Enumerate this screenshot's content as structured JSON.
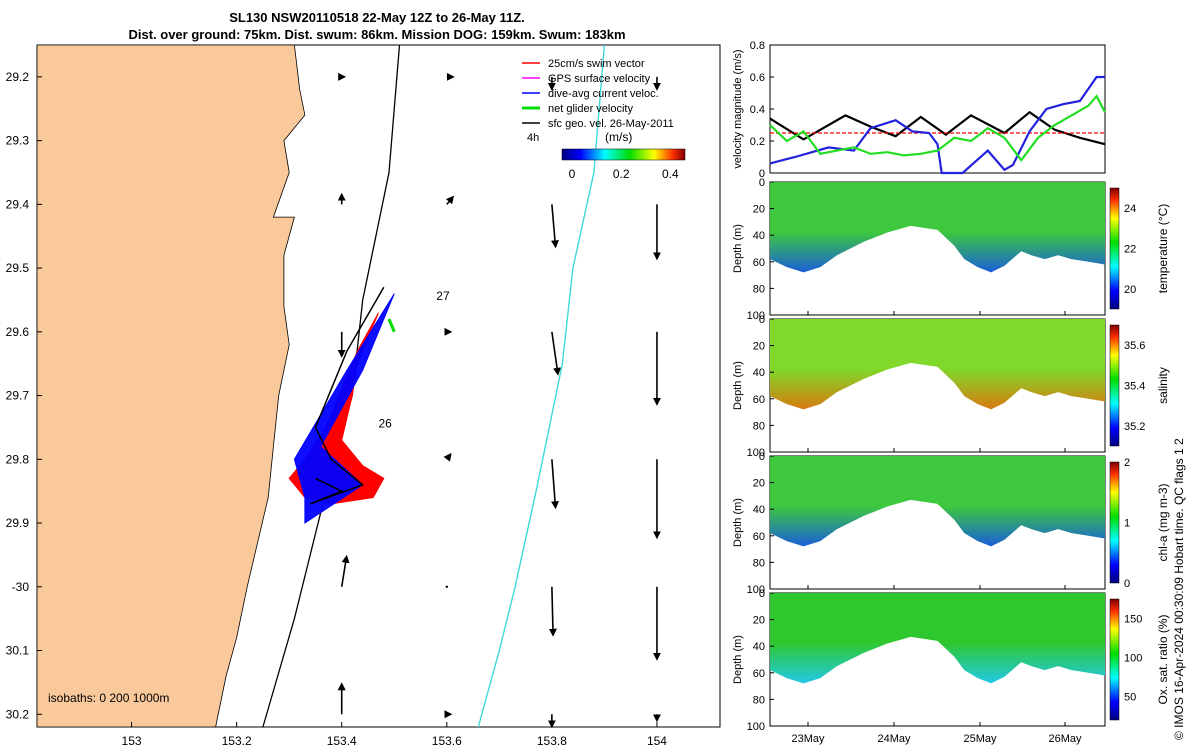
{
  "header": {
    "title_line1": "SL130 NSW20110518 22-May 12Z to 26-May 11Z.",
    "title_line2": "Dist. over ground: 75km. Dist. swum: 86km. Mission DOG: 159km. Swum: 183km"
  },
  "side_credit": "© IMOS 16-Apr-2024 00:30:09 Hobart time. QC flags 1  2",
  "colors": {
    "land": "#f9c89b",
    "glider_swim": "#ff0000",
    "glider_track_blue": "#0000ff",
    "net_velocity": "#00dd00",
    "isobath_200": "#000000",
    "isobath_1000": "#40d8d8",
    "depth_fill": "#1bb81b"
  },
  "chart_data": [
    {
      "type": "map",
      "name": "map",
      "xlim": [
        152.82,
        154.12
      ],
      "ylim": [
        -30.22,
        -29.15
      ],
      "x_ticks": [
        153,
        153.2,
        153.4,
        153.6,
        153.8,
        154
      ],
      "x_tick_labels": [
        "153",
        "153.2",
        "153.4",
        "153.6",
        "153.8",
        "154"
      ],
      "y_ticks": [
        -29.2,
        -29.3,
        -29.4,
        -29.5,
        -29.6,
        -29.7,
        -29.8,
        -29.9,
        -30,
        -30.1,
        -30.2
      ],
      "y_tick_labels": [
        "29.2",
        "29.3",
        "29.4",
        "29.5",
        "29.6",
        "29.7",
        "29.8",
        "29.9",
        "-30",
        "30.1",
        "30.2"
      ],
      "legend": [
        {
          "label": "25cm/s swim vector",
          "color": "#ff0000"
        },
        {
          "label": "GPS surface velocity",
          "color": "#ff00ff"
        },
        {
          "label": "dive-avg current veloc.",
          "color": "#0000ff"
        },
        {
          "label": "net glider velocity",
          "color": "#00dd00"
        },
        {
          "label": "sfc geo. vel. 26-May-2011",
          "color": "#000000"
        }
      ],
      "legend_time_label": "4h",
      "colorbar": {
        "label": "(m/s)",
        "ticks": [
          "0",
          "0.2",
          "0.4"
        ],
        "range": [
          0,
          0.5
        ]
      },
      "isobath_caption": "isobaths: 0   200  1000m",
      "day_labels": [
        {
          "text": "27",
          "lon": 153.58,
          "lat": -29.55
        },
        {
          "text": "26",
          "lon": 153.47,
          "lat": -29.75
        }
      ],
      "isobath_200_path": [
        [
          153.51,
          -29.15
        ],
        [
          153.49,
          -29.35
        ],
        [
          153.44,
          -29.55
        ],
        [
          153.42,
          -29.7
        ],
        [
          153.37,
          -29.85
        ],
        [
          153.31,
          -30.05
        ],
        [
          153.25,
          -30.22
        ]
      ],
      "isobath_1000_path": [
        [
          153.9,
          -29.15
        ],
        [
          153.88,
          -29.35
        ],
        [
          153.84,
          -29.5
        ],
        [
          153.82,
          -29.65
        ],
        [
          153.77,
          -29.85
        ],
        [
          153.73,
          -30.0
        ],
        [
          153.7,
          -30.1
        ],
        [
          153.66,
          -30.22
        ]
      ],
      "glider_track": [
        [
          153.48,
          -29.53
        ],
        [
          153.41,
          -29.63
        ],
        [
          153.35,
          -29.75
        ],
        [
          153.38,
          -29.8
        ],
        [
          153.44,
          -29.84
        ],
        [
          153.34,
          -29.87
        ],
        [
          153.4,
          -29.85
        ],
        [
          153.35,
          -29.83
        ]
      ],
      "swim_blob": [
        [
          153.47,
          -29.57
        ],
        [
          153.43,
          -29.65
        ],
        [
          153.42,
          -29.7
        ],
        [
          153.4,
          -29.77
        ],
        [
          153.44,
          -29.81
        ],
        [
          153.48,
          -29.83
        ],
        [
          153.46,
          -29.86
        ],
        [
          153.38,
          -29.87
        ],
        [
          153.33,
          -29.86
        ],
        [
          153.3,
          -29.83
        ],
        [
          153.33,
          -29.8
        ],
        [
          153.37,
          -29.75
        ],
        [
          153.43,
          -29.63
        ]
      ],
      "blue_blob": [
        [
          153.5,
          -29.54
        ],
        [
          153.44,
          -29.66
        ],
        [
          153.36,
          -29.78
        ],
        [
          153.44,
          -29.84
        ],
        [
          153.33,
          -29.9
        ],
        [
          153.33,
          -29.86
        ],
        [
          153.31,
          -29.8
        ],
        [
          153.41,
          -29.66
        ],
        [
          153.47,
          -29.58
        ]
      ],
      "net_velocity_path": [
        [
          153.5,
          -29.6
        ],
        [
          153.49,
          -29.58
        ]
      ],
      "vector_grid": {
        "lons": [
          153.4,
          153.6,
          153.8,
          154.0
        ],
        "lats": [
          -29.2,
          -29.4,
          -29.6,
          -29.8,
          -30.0,
          -30.2
        ],
        "east": [
          [
            0.02,
            0.05,
            0.0,
            0.0
          ],
          [
            0.0,
            0.05,
            0.03,
            0.0
          ],
          [
            0.0,
            0.03,
            0.05,
            0.0
          ],
          [
            0.0,
            0.03,
            0.03,
            0.0
          ],
          [
            0.04,
            0.0,
            0.01,
            0.0
          ],
          [
            0.0,
            0.03,
            0.0,
            0.0
          ]
        ],
        "north": [
          [
            0.0,
            0.0,
            -0.1,
            -0.1
          ],
          [
            0.08,
            0.06,
            -0.35,
            -0.45
          ],
          [
            -0.2,
            0.0,
            -0.35,
            -0.6
          ],
          [
            0.0,
            0.04,
            -0.4,
            -0.65
          ],
          [
            0.25,
            0.0,
            -0.4,
            -0.6
          ],
          [
            0.25,
            0.0,
            -0.1,
            -0.05
          ]
        ]
      }
    },
    {
      "type": "line",
      "name": "velocity",
      "ylabel": "velocity magnitude (m/s)",
      "xlim": [
        0,
        4
      ],
      "ylim": [
        0,
        0.8
      ],
      "y_ticks": [
        0,
        0.2,
        0.4,
        0.6,
        0.8
      ],
      "y_tick_labels": [
        "0",
        "0.2",
        "0.4",
        "0.6",
        "0.8"
      ],
      "series": [
        {
          "color": "#000000",
          "x": [
            0,
            0.4,
            0.9,
            1.2,
            1.5,
            1.8,
            2.1,
            2.4,
            2.8,
            3.1,
            3.4,
            3.7,
            4.0
          ],
          "y": [
            0.34,
            0.21,
            0.36,
            0.29,
            0.23,
            0.35,
            0.24,
            0.36,
            0.25,
            0.38,
            0.27,
            0.22,
            0.18
          ]
        },
        {
          "color": "#ff0000",
          "x": [
            0,
            4.0
          ],
          "y": [
            0.25,
            0.25
          ]
        },
        {
          "color": "#2222dd",
          "x": [
            0,
            0.3,
            0.7,
            1.0,
            1.2,
            1.5,
            1.7,
            1.9,
            2.0,
            2.05,
            2.3,
            2.6,
            2.8,
            2.9,
            3.1,
            3.3,
            3.5,
            3.7,
            3.9,
            4.0
          ],
          "y": [
            0.06,
            0.1,
            0.16,
            0.14,
            0.28,
            0.33,
            0.26,
            0.25,
            0.18,
            0.0,
            0.0,
            0.14,
            0.02,
            0.05,
            0.26,
            0.4,
            0.43,
            0.45,
            0.6,
            0.6
          ]
        },
        {
          "color": "#22dd22",
          "x": [
            0,
            0.2,
            0.4,
            0.6,
            0.8,
            1.0,
            1.2,
            1.4,
            1.6,
            1.8,
            2.0,
            2.2,
            2.4,
            2.6,
            2.8,
            3.0,
            3.2,
            3.4,
            3.6,
            3.8,
            3.9,
            4.0
          ],
          "y": [
            0.3,
            0.2,
            0.26,
            0.12,
            0.14,
            0.16,
            0.12,
            0.13,
            0.11,
            0.12,
            0.14,
            0.22,
            0.2,
            0.28,
            0.22,
            0.08,
            0.22,
            0.3,
            0.36,
            0.42,
            0.48,
            0.38
          ]
        }
      ]
    },
    {
      "type": "heatmap",
      "name": "temperature",
      "ylabel": "Depth (m)",
      "colorbar_label": "temperature (°C)",
      "colorbar_ticks": [
        "20",
        "22",
        "24"
      ],
      "colorbar_range": [
        19,
        25
      ],
      "ylim": [
        0,
        100
      ],
      "y_ticks": [
        0,
        20,
        40,
        60,
        80,
        100
      ],
      "y_tick_labels": [
        "0",
        "20",
        "40",
        "60",
        "80",
        "100"
      ],
      "surface_color": "#3ec83e",
      "bottom_color": "#1a5ed8"
    },
    {
      "type": "heatmap",
      "name": "salinity",
      "ylabel": "Depth (m)",
      "colorbar_label": "salinity",
      "colorbar_ticks": [
        "35.2",
        "35.4",
        "35.6"
      ],
      "colorbar_range": [
        35.1,
        35.7
      ],
      "ylim": [
        0,
        100
      ],
      "y_ticks": [
        0,
        20,
        40,
        60,
        80,
        100
      ],
      "y_tick_labels": [
        "0",
        "20",
        "40",
        "60",
        "80",
        "100"
      ],
      "surface_color": "#7fd82a",
      "bottom_color": "#d87a10"
    },
    {
      "type": "heatmap",
      "name": "chla",
      "ylabel": "Depth (m)",
      "colorbar_label": "chl-a (mg m-3)",
      "colorbar_ticks": [
        "0",
        "1",
        "2"
      ],
      "colorbar_range": [
        0,
        2
      ],
      "ylim": [
        0,
        100
      ],
      "y_ticks": [
        0,
        20,
        40,
        60,
        80,
        100
      ],
      "y_tick_labels": [
        "0",
        "20",
        "40",
        "60",
        "80",
        "100"
      ],
      "surface_color": "#3ec83e",
      "bottom_color": "#1a5ed8"
    },
    {
      "type": "heatmap",
      "name": "oxygen",
      "ylabel": "Depth (m)",
      "colorbar_label": "Ox. sat. ratio (%)",
      "colorbar_ticks": [
        "50",
        "100",
        "150"
      ],
      "colorbar_range": [
        20,
        175
      ],
      "ylim": [
        0,
        100
      ],
      "y_ticks": [
        0,
        20,
        40,
        60,
        80,
        100
      ],
      "y_tick_labels": [
        "0",
        "20",
        "40",
        "60",
        "80",
        "100"
      ],
      "x_ticks": [
        "23May",
        "24May",
        "25May",
        "26May"
      ],
      "surface_color": "#2ec82e",
      "bottom_color": "#22c8e8"
    }
  ]
}
